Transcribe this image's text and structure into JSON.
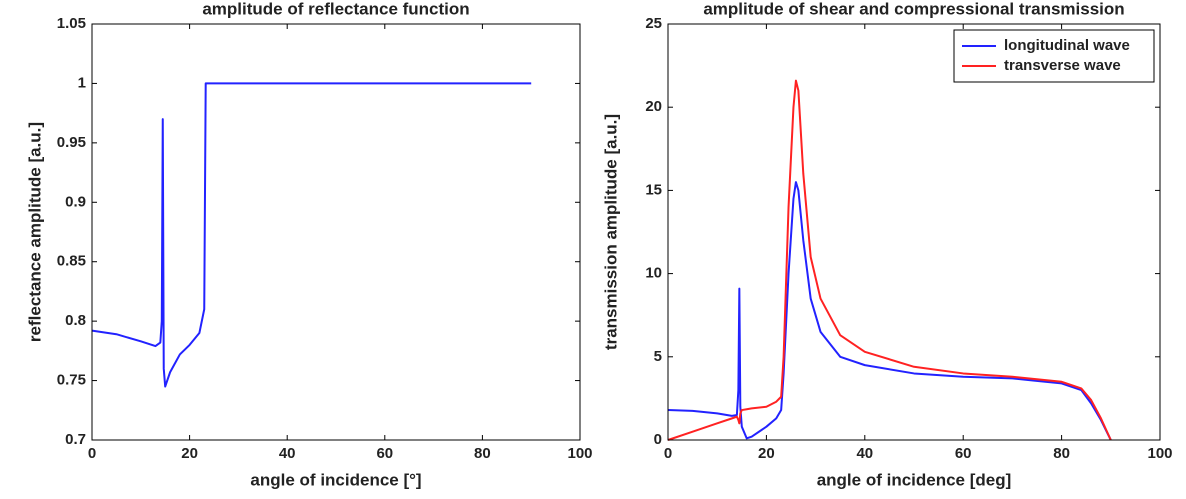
{
  "chart_data": [
    {
      "type": "line",
      "title": "amplitude of reflectance function",
      "x_label": "angle of incidence [°]",
      "y_label": "reflectance amplitude [a.u.]",
      "xlim": [
        0,
        100
      ],
      "ylim": [
        0.7,
        1.05
      ],
      "xticks": [
        0,
        20,
        40,
        60,
        80,
        100
      ],
      "yticks": [
        0.7,
        0.75,
        0.8,
        0.85,
        0.9,
        0.95,
        {
          "value": 1.0,
          "label": "1"
        },
        1.05
      ],
      "x": [
        0,
        5,
        10,
        13,
        14,
        14.3,
        14.5,
        14.7,
        15,
        16,
        18,
        20,
        22,
        23,
        23.3,
        30,
        60,
        90
      ],
      "series": [
        {
          "color": "#2222ff",
          "values": [
            0.792,
            0.789,
            0.783,
            0.779,
            0.782,
            0.8,
            0.97,
            0.76,
            0.745,
            0.757,
            0.772,
            0.78,
            0.79,
            0.81,
            1.0,
            1.0,
            1.0,
            1.0
          ]
        }
      ]
    },
    {
      "type": "line",
      "title": "amplitude of shear and compressional transmission",
      "x_label": "angle of incidence [deg]",
      "y_label": "transmission amplitude [a.u.]",
      "xlim": [
        0,
        100
      ],
      "ylim": [
        0,
        25
      ],
      "xticks": [
        0,
        20,
        40,
        60,
        80,
        100
      ],
      "yticks": [
        0,
        5,
        10,
        15,
        20,
        25
      ],
      "legend": "upper right",
      "x": [
        0,
        5,
        10,
        13,
        14,
        14.3,
        14.5,
        14.7,
        15,
        16,
        17,
        20,
        22,
        23,
        23.5,
        24.5,
        25.5,
        26,
        26.5,
        27.5,
        29,
        31,
        35,
        40,
        50,
        60,
        70,
        80,
        84,
        86,
        88,
        90
      ],
      "series": [
        {
          "name": "longitudinal wave",
          "color": "#2222ff",
          "values": [
            1.8,
            1.75,
            1.6,
            1.45,
            1.5,
            3,
            9.1,
            2,
            0.8,
            0.1,
            0.2,
            0.8,
            1.3,
            1.8,
            4,
            10,
            14.5,
            15.5,
            15,
            12,
            8.5,
            6.5,
            5.0,
            4.5,
            4.0,
            3.8,
            3.7,
            3.4,
            3.0,
            2.2,
            1.2,
            0
          ]
        },
        {
          "name": "transverse wave",
          "color": "#ff2222",
          "values": [
            0,
            0.5,
            1.0,
            1.3,
            1.4,
            1.2,
            1.0,
            1.6,
            1.8,
            1.85,
            1.9,
            2.0,
            2.3,
            2.6,
            5,
            14,
            20,
            21.6,
            21,
            16,
            11,
            8.5,
            6.3,
            5.3,
            4.4,
            4.0,
            3.8,
            3.5,
            3.1,
            2.4,
            1.3,
            0
          ]
        }
      ]
    }
  ]
}
